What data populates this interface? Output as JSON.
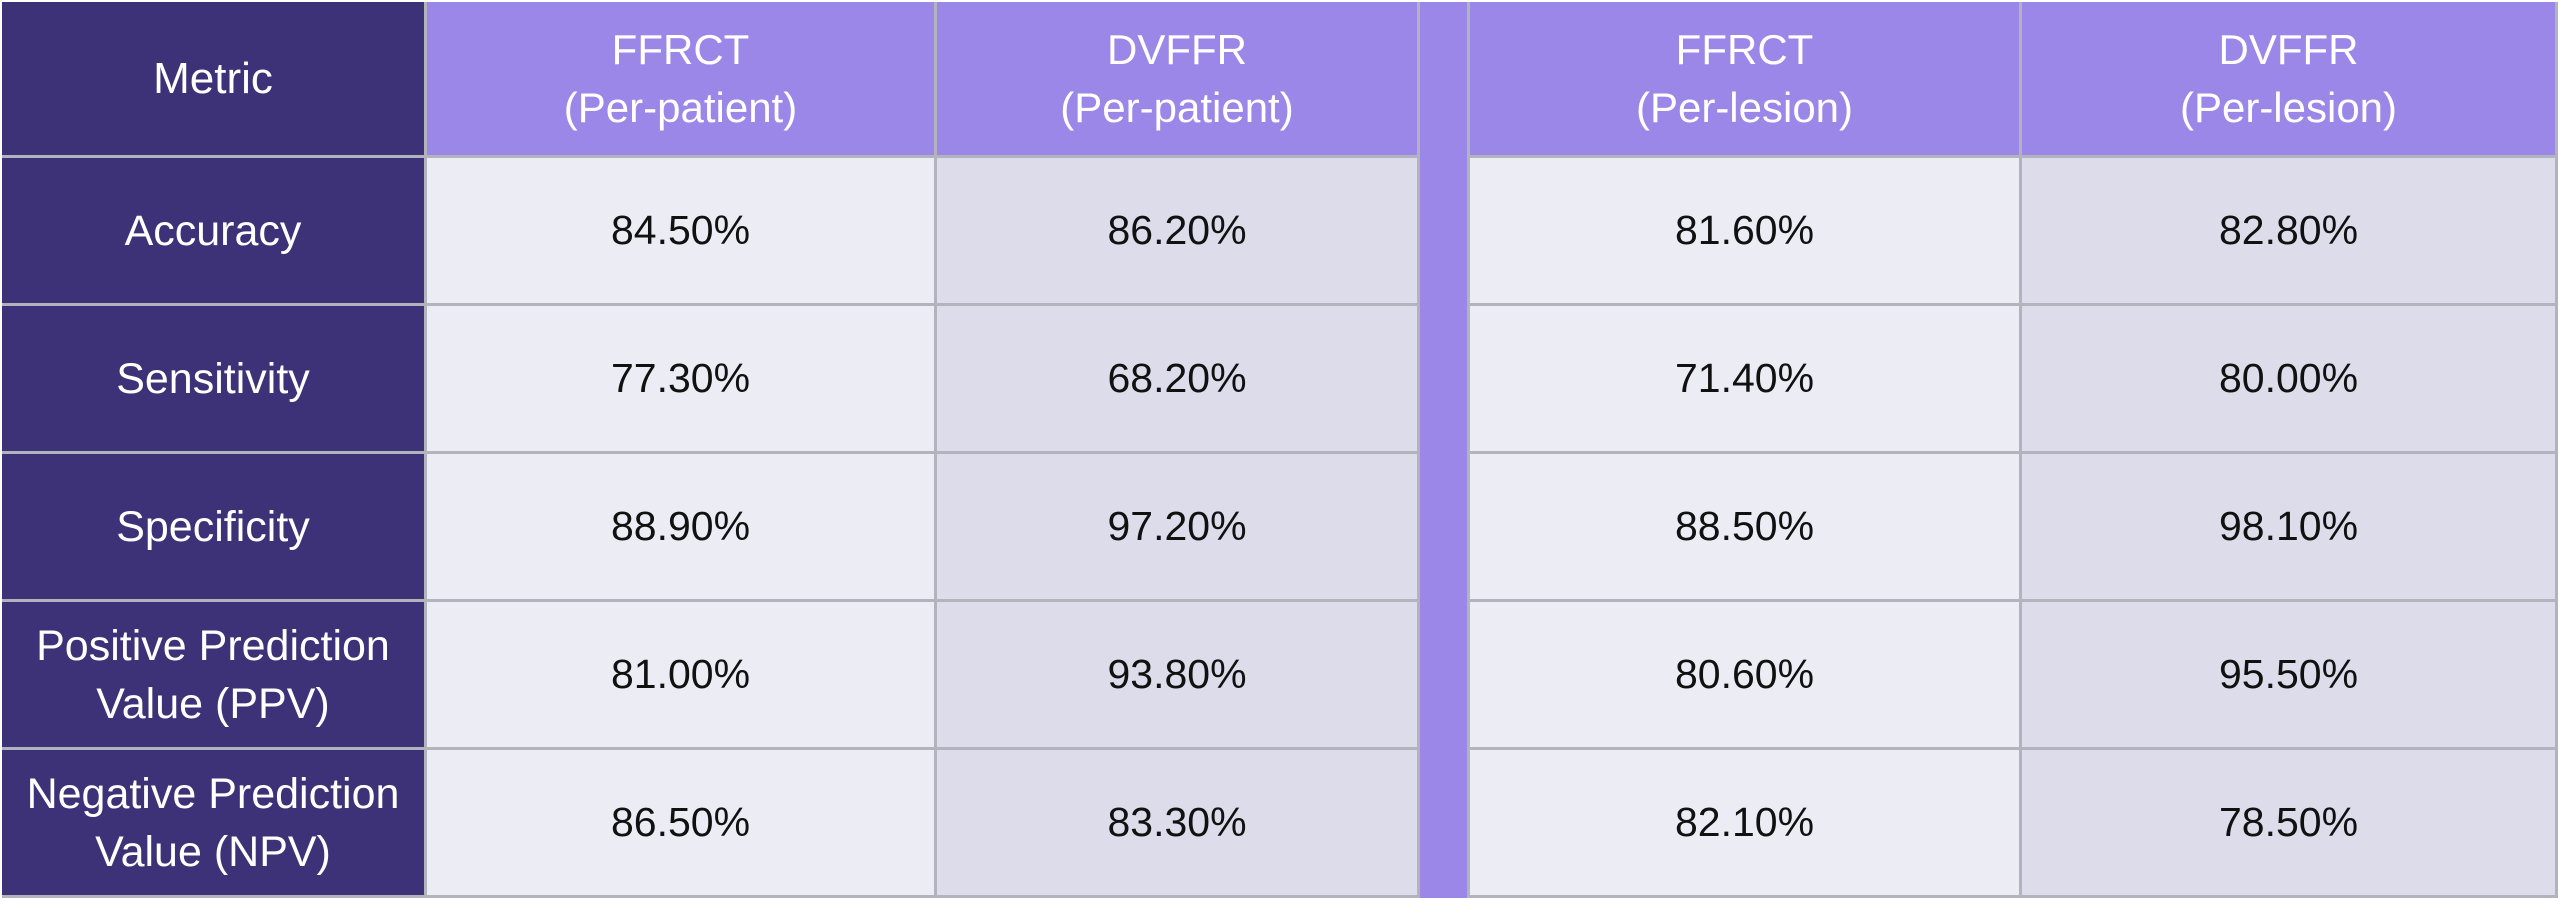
{
  "chart_data": {
    "type": "table",
    "header": {
      "metric": "Metric",
      "columns": [
        {
          "line1": "FFRCT",
          "line2": "(Per-patient)"
        },
        {
          "line1": "DVFFR",
          "line2": "(Per-patient)"
        },
        {
          "line1": "FFRCT",
          "line2": "(Per-lesion)"
        },
        {
          "line1": "DVFFR",
          "line2": "(Per-lesion)"
        }
      ]
    },
    "rows": [
      {
        "metric": [
          "Accuracy"
        ],
        "values": [
          "84.50%",
          "86.20%",
          "81.60%",
          "82.80%"
        ]
      },
      {
        "metric": [
          "Sensitivity"
        ],
        "values": [
          "77.30%",
          "68.20%",
          "71.40%",
          "80.00%"
        ]
      },
      {
        "metric": [
          "Specificity"
        ],
        "values": [
          "88.90%",
          "97.20%",
          "88.50%",
          "98.10%"
        ]
      },
      {
        "metric": [
          "Positive Prediction",
          "Value (PPV)"
        ],
        "values": [
          "81.00%",
          "93.80%",
          "80.60%",
          "95.50%"
        ]
      },
      {
        "metric": [
          "Negative Prediction",
          "Value (NPV)"
        ],
        "values": [
          "86.50%",
          "83.30%",
          "82.10%",
          "78.50%"
        ]
      }
    ],
    "colors": {
      "header_bg": "#9b87e8",
      "metric_bg": "#3d3277",
      "cell_light": "#ececf4",
      "cell_dark": "#dcdcea",
      "border": "#b3b3bd"
    }
  }
}
